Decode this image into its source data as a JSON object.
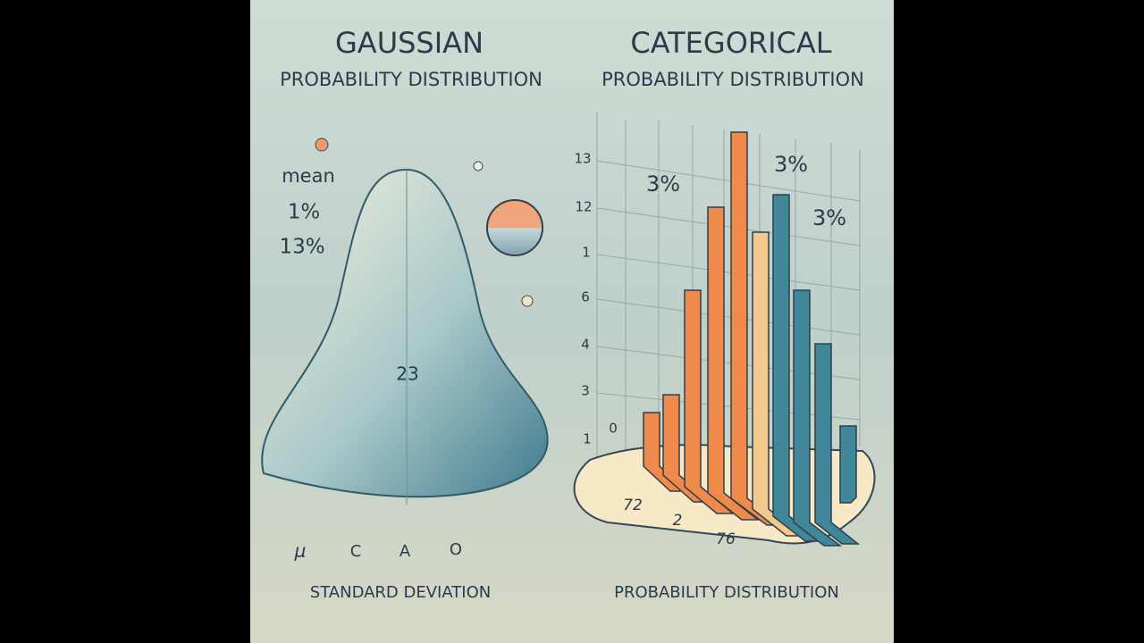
{
  "left": {
    "title": "GAUSSIAN",
    "subtitle": "PROBABILITY DISTRIBUTION",
    "labels": [
      "mean",
      "1%",
      "13%"
    ],
    "center_label": "23",
    "symbols": [
      "μ",
      "C",
      "A",
      "O"
    ],
    "footer": "STANDARD DEVIATION"
  },
  "right": {
    "title": "CATEGORICAL",
    "subtitle": "PROBABILITY DISTRIBUTION",
    "axis_labels": [
      "13",
      "12",
      "1",
      "6",
      "4",
      "3",
      "1",
      "0"
    ],
    "percent_labels": [
      "3%",
      "3%",
      "3%"
    ],
    "base_labels": [
      "72",
      "2",
      "76"
    ],
    "footer": "PROBABILITY DISTRIBUTION"
  }
}
